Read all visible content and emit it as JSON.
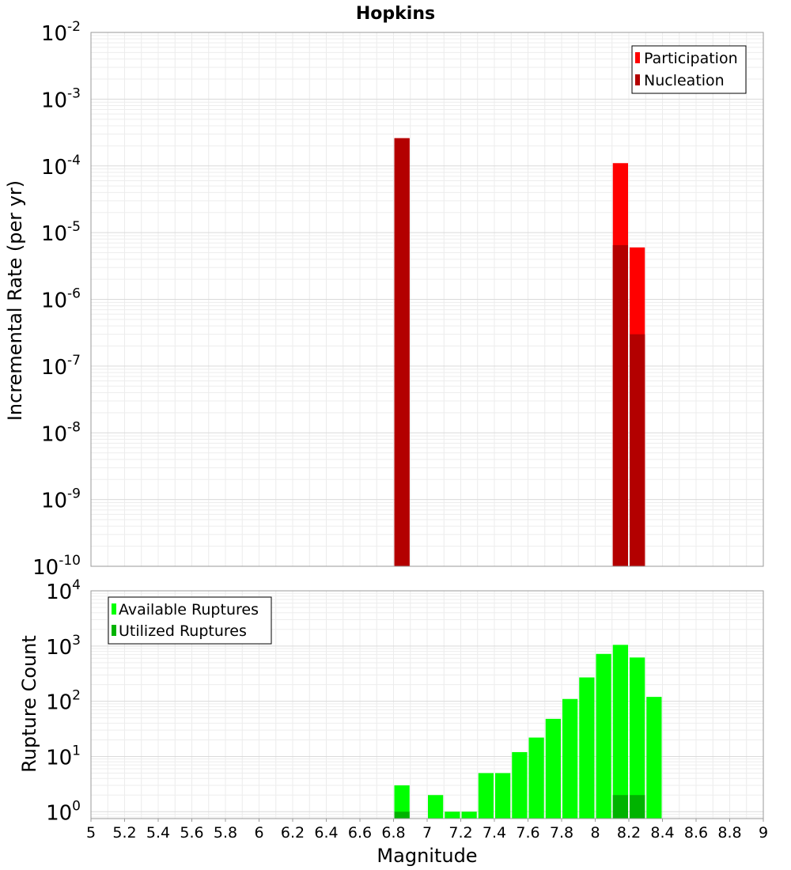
{
  "chart_data": [
    {
      "type": "bar",
      "title": "Hopkins",
      "ylabel": "Incremental Rate (per yr)",
      "xlabel": "",
      "yscale": "log",
      "ylim": [
        1e-10,
        0.01
      ],
      "xlim": [
        5,
        9
      ],
      "y_tick_exponents": [
        "-10",
        "-9",
        "-8",
        "-7",
        "-6",
        "-5",
        "-4",
        "-3",
        "-2"
      ],
      "grid": true,
      "legend_placement": "top-right",
      "bin_width": 0.1,
      "series": [
        {
          "name": "Participation",
          "color": "#ff0000",
          "x": [
            6.85,
            8.15,
            8.25
          ],
          "values": [
            0.00026,
            0.00011,
            6e-06
          ]
        },
        {
          "name": "Nucleation",
          "color": "#b30000",
          "x": [
            6.85,
            8.15,
            8.25
          ],
          "values": [
            0.00026,
            6.5e-06,
            3e-07
          ]
        }
      ]
    },
    {
      "type": "bar",
      "title": "",
      "ylabel": "Rupture Count",
      "xlabel": "Magnitude",
      "yscale": "log",
      "ylim": [
        0.75,
        10000.0
      ],
      "xlim": [
        5,
        9
      ],
      "y_tick_exponents": [
        "0",
        "1",
        "2",
        "3",
        "4"
      ],
      "x_tick_labels": [
        "5",
        "5.2",
        "5.4",
        "5.6",
        "5.8",
        "6",
        "6.2",
        "6.4",
        "6.6",
        "6.8",
        "7",
        "7.2",
        "7.4",
        "7.6",
        "7.8",
        "8",
        "8.2",
        "8.4",
        "8.6",
        "8.8",
        "9"
      ],
      "grid": true,
      "legend_placement": "top-left",
      "bin_width": 0.1,
      "series": [
        {
          "name": "Available Ruptures",
          "color": "#00ff00",
          "x": [
            6.85,
            7.05,
            7.15,
            7.25,
            7.35,
            7.45,
            7.55,
            7.65,
            7.75,
            7.85,
            7.95,
            8.05,
            8.15,
            8.25,
            8.35
          ],
          "values": [
            3,
            2,
            1,
            1,
            5,
            5,
            12,
            22,
            48,
            110,
            270,
            720,
            1050,
            620,
            120
          ]
        },
        {
          "name": "Utilized Ruptures",
          "color": "#00b300",
          "x": [
            6.85,
            8.15,
            8.25
          ],
          "values": [
            1,
            2,
            2
          ]
        }
      ]
    }
  ]
}
